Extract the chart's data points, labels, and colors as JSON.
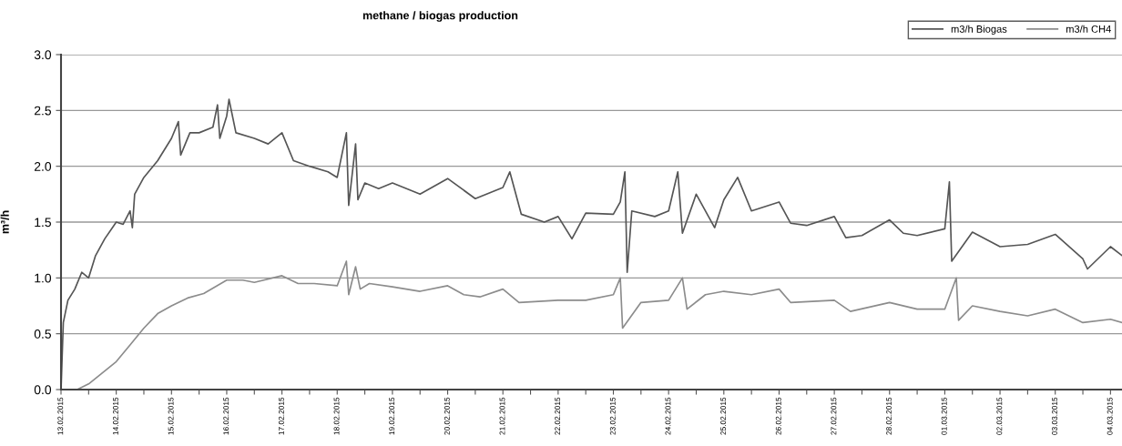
{
  "chart_data": {
    "type": "line",
    "title": "methane / biogas production",
    "ylabel": "m³/h",
    "grid": "y",
    "legend": "top right",
    "xlim": [
      "2015-02-13T00:00",
      "2015-03-04T05:00"
    ],
    "ylim": [
      0,
      3
    ],
    "yticks": [
      {
        "value": 0,
        "label": "0.0"
      },
      {
        "value": 0.5,
        "label": "0.5"
      },
      {
        "value": 1,
        "label": "1.0"
      },
      {
        "value": 1.5,
        "label": "1.5"
      },
      {
        "value": 2,
        "label": "2.0"
      },
      {
        "value": 2.5,
        "label": "2.5"
      },
      {
        "value": 3,
        "label": "3.0"
      }
    ],
    "xticks": [
      {
        "value": "2015-02-13",
        "label": "13.02.2015"
      },
      {
        "value": "2015-02-13T12:00",
        "label": null
      },
      {
        "value": "2015-02-14",
        "label": "14.02.2015"
      },
      {
        "value": "2015-02-14T12:00",
        "label": null
      },
      {
        "value": "2015-02-15",
        "label": "15.02.2015"
      },
      {
        "value": "2015-02-15T12:00",
        "label": null
      },
      {
        "value": "2015-02-16",
        "label": "16.02.2015"
      },
      {
        "value": "2015-02-16T12:00",
        "label": null
      },
      {
        "value": "2015-02-17",
        "label": "17.02.2015"
      },
      {
        "value": "2015-02-17T12:00",
        "label": null
      },
      {
        "value": "2015-02-18",
        "label": "18.02.2015"
      },
      {
        "value": "2015-02-18T12:00",
        "label": null
      },
      {
        "value": "2015-02-19",
        "label": "19.02.2015"
      },
      {
        "value": "2015-02-19T12:00",
        "label": null
      },
      {
        "value": "2015-02-20",
        "label": "20.02.2015"
      },
      {
        "value": "2015-02-20T12:00",
        "label": null
      },
      {
        "value": "2015-02-21",
        "label": "21.02.2015"
      },
      {
        "value": "2015-02-21T12:00",
        "label": null
      },
      {
        "value": "2015-02-22",
        "label": "22.02.2015"
      },
      {
        "value": "2015-02-22T12:00",
        "label": null
      },
      {
        "value": "2015-02-23",
        "label": "23.02.2015"
      },
      {
        "value": "2015-02-23T12:00",
        "label": null
      },
      {
        "value": "2015-02-24",
        "label": "24.02.2015"
      },
      {
        "value": "2015-02-24T12:00",
        "label": null
      },
      {
        "value": "2015-02-25",
        "label": "25.02.2015"
      },
      {
        "value": "2015-02-25T12:00",
        "label": null
      },
      {
        "value": "2015-02-26",
        "label": "26.02.2015"
      },
      {
        "value": "2015-02-26T12:00",
        "label": null
      },
      {
        "value": "2015-02-27",
        "label": "27.02.2015"
      },
      {
        "value": "2015-02-27T12:00",
        "label": null
      },
      {
        "value": "2015-02-28",
        "label": "28.02.2015"
      },
      {
        "value": "2015-02-28T12:00",
        "label": null
      },
      {
        "value": "2015-03-01",
        "label": "01.03.2015"
      },
      {
        "value": "2015-03-01T12:00",
        "label": null
      },
      {
        "value": "2015-03-02",
        "label": "02.03.2015"
      },
      {
        "value": "2015-03-02T12:00",
        "label": null
      },
      {
        "value": "2015-03-03",
        "label": "03.03.2015"
      },
      {
        "value": "2015-03-03T12:00",
        "label": null
      },
      {
        "value": "2015-03-04",
        "label": "04.03.2015"
      }
    ],
    "series": [
      {
        "name": "m3/h Biogas",
        "color": "#555555",
        "x": [
          "2015-02-13T00:00",
          "2015-02-13T01:00",
          "2015-02-13T03:00",
          "2015-02-13T06:00",
          "2015-02-13T09:00",
          "2015-02-13T12:00",
          "2015-02-13T15:00",
          "2015-02-13T19:00",
          "2015-02-14T00:00",
          "2015-02-14T03:00",
          "2015-02-14T06:00",
          "2015-02-14T07:00",
          "2015-02-14T08:00",
          "2015-02-14T12:00",
          "2015-02-14T18:00",
          "2015-02-15T00:00",
          "2015-02-15T03:00",
          "2015-02-15T04:00",
          "2015-02-15T08:00",
          "2015-02-15T12:00",
          "2015-02-15T18:00",
          "2015-02-15T20:00",
          "2015-02-15T21:00",
          "2015-02-16T00:00",
          "2015-02-16T01:00",
          "2015-02-16T04:00",
          "2015-02-16T12:00",
          "2015-02-16T18:00",
          "2015-02-17T00:00",
          "2015-02-17T05:00",
          "2015-02-17T12:00",
          "2015-02-17T20:00",
          "2015-02-18T00:00",
          "2015-02-18T04:00",
          "2015-02-18T05:00",
          "2015-02-18T08:00",
          "2015-02-18T09:00",
          "2015-02-18T12:00",
          "2015-02-18T18:00",
          "2015-02-19T00:00",
          "2015-02-19T12:00",
          "2015-02-20T00:00",
          "2015-02-20T12:00",
          "2015-02-21T00:00",
          "2015-02-21T03:00",
          "2015-02-21T08:00",
          "2015-02-21T18:00",
          "2015-02-22T00:00",
          "2015-02-22T06:00",
          "2015-02-22T12:00",
          "2015-02-23T00:00",
          "2015-02-23T03:00",
          "2015-02-23T05:00",
          "2015-02-23T06:00",
          "2015-02-23T08:00",
          "2015-02-23T18:00",
          "2015-02-24T00:00",
          "2015-02-24T04:00",
          "2015-02-24T06:00",
          "2015-02-24T12:00",
          "2015-02-24T20:00",
          "2015-02-25T00:00",
          "2015-02-25T06:00",
          "2015-02-25T12:00",
          "2015-02-26T00:00",
          "2015-02-26T05:00",
          "2015-02-26T12:00",
          "2015-02-27T00:00",
          "2015-02-27T05:00",
          "2015-02-27T12:00",
          "2015-02-28T00:00",
          "2015-02-28T06:00",
          "2015-02-28T12:00",
          "2015-03-01T00:00",
          "2015-03-01T02:00",
          "2015-03-01T03:00",
          "2015-03-01T12:00",
          "2015-03-02T00:00",
          "2015-03-02T12:00",
          "2015-03-03T00:00",
          "2015-03-03T12:00",
          "2015-03-03T14:00",
          "2015-03-04T00:00",
          "2015-03-04T05:00"
        ],
        "values": [
          0.0,
          0.6,
          0.8,
          0.9,
          1.05,
          1.0,
          1.2,
          1.35,
          1.5,
          1.48,
          1.6,
          1.45,
          1.75,
          1.9,
          2.05,
          2.25,
          2.4,
          2.1,
          2.3,
          2.3,
          2.35,
          2.55,
          2.25,
          2.45,
          2.6,
          2.3,
          2.25,
          2.2,
          2.3,
          2.05,
          2.0,
          1.95,
          1.9,
          2.3,
          1.65,
          2.2,
          1.7,
          1.85,
          1.8,
          1.85,
          1.75,
          1.89,
          1.71,
          1.81,
          1.95,
          1.57,
          1.5,
          1.55,
          1.35,
          1.58,
          1.57,
          1.68,
          1.95,
          1.05,
          1.6,
          1.55,
          1.6,
          1.95,
          1.4,
          1.75,
          1.45,
          1.7,
          1.9,
          1.6,
          1.68,
          1.49,
          1.47,
          1.55,
          1.36,
          1.38,
          1.52,
          1.4,
          1.38,
          1.44,
          1.86,
          1.15,
          1.41,
          1.28,
          1.3,
          1.39,
          1.17,
          1.08,
          1.28,
          1.2
        ]
      },
      {
        "name": "m3/h CH4",
        "color": "#8c8c8c",
        "x": [
          "2015-02-13T07:00",
          "2015-02-13T12:00",
          "2015-02-13T18:00",
          "2015-02-14T00:00",
          "2015-02-14T06:00",
          "2015-02-14T12:00",
          "2015-02-14T18:00",
          "2015-02-15T00:00",
          "2015-02-15T07:00",
          "2015-02-15T14:00",
          "2015-02-16T00:00",
          "2015-02-16T07:00",
          "2015-02-16T12:00",
          "2015-02-17T00:00",
          "2015-02-17T07:00",
          "2015-02-17T14:00",
          "2015-02-18T00:00",
          "2015-02-18T04:00",
          "2015-02-18T05:00",
          "2015-02-18T08:00",
          "2015-02-18T10:00",
          "2015-02-18T14:00",
          "2015-02-19T00:00",
          "2015-02-19T12:00",
          "2015-02-20T00:00",
          "2015-02-20T07:00",
          "2015-02-20T14:00",
          "2015-02-21T00:00",
          "2015-02-21T07:00",
          "2015-02-22T00:00",
          "2015-02-22T12:00",
          "2015-02-23T00:00",
          "2015-02-23T03:00",
          "2015-02-23T04:00",
          "2015-02-23T12:00",
          "2015-02-24T00:00",
          "2015-02-24T06:00",
          "2015-02-24T08:00",
          "2015-02-24T16:00",
          "2015-02-25T00:00",
          "2015-02-25T12:00",
          "2015-02-26T00:00",
          "2015-02-26T05:00",
          "2015-02-27T00:00",
          "2015-02-27T07:00",
          "2015-02-28T00:00",
          "2015-02-28T12:00",
          "2015-03-01T00:00",
          "2015-03-01T05:00",
          "2015-03-01T06:00",
          "2015-03-01T12:00",
          "2015-03-02T00:00",
          "2015-03-02T12:00",
          "2015-03-03T00:00",
          "2015-03-03T12:00",
          "2015-03-04T00:00",
          "2015-03-04T05:00"
        ],
        "values": [
          0.0,
          0.05,
          0.15,
          0.25,
          0.4,
          0.55,
          0.68,
          0.75,
          0.82,
          0.86,
          0.98,
          0.98,
          0.96,
          1.02,
          0.95,
          0.95,
          0.93,
          1.15,
          0.85,
          1.1,
          0.9,
          0.95,
          0.92,
          0.88,
          0.93,
          0.85,
          0.83,
          0.9,
          0.78,
          0.8,
          0.8,
          0.85,
          1.0,
          0.55,
          0.78,
          0.8,
          1.0,
          0.72,
          0.85,
          0.88,
          0.85,
          0.9,
          0.78,
          0.8,
          0.7,
          0.78,
          0.72,
          0.72,
          1.0,
          0.62,
          0.75,
          0.7,
          0.66,
          0.72,
          0.6,
          0.63,
          0.6
        ]
      }
    ]
  }
}
